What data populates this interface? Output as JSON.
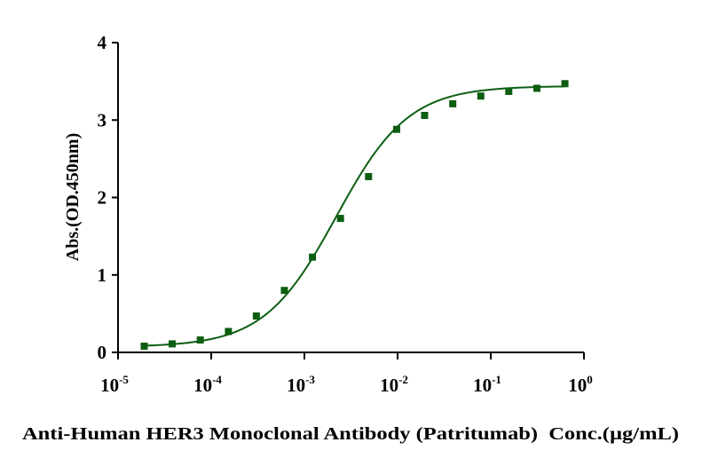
{
  "chart_data": {
    "type": "scatter",
    "title": "",
    "xlabel": "Anti-Human HER3 Monoclonal Antibody (Patritumab)  Conc.(µg/mL)",
    "ylabel": "Abs.(OD.450nm)",
    "xscale": "log",
    "xlim": [
      1e-05,
      1
    ],
    "ylim": [
      0,
      4
    ],
    "grid": false,
    "x_ticks": [
      {
        "base": "10",
        "exp": "-5",
        "value": 1e-05
      },
      {
        "base": "10",
        "exp": "-4",
        "value": 0.0001
      },
      {
        "base": "10",
        "exp": "-3",
        "value": 0.001
      },
      {
        "base": "10",
        "exp": "-2",
        "value": 0.01
      },
      {
        "base": "10",
        "exp": "-1",
        "value": 0.1
      },
      {
        "base": "10",
        "exp": "0",
        "value": 1
      }
    ],
    "y_ticks": [
      "0",
      "1",
      "2",
      "3",
      "4"
    ],
    "series": [
      {
        "name": "Patritumab",
        "color": "#0d5e12",
        "marker": "square",
        "x": [
          1.91e-05,
          3.81e-05,
          7.63e-05,
          0.000153,
          0.000305,
          0.00061,
          0.00122,
          0.00244,
          0.00488,
          0.00977,
          0.0195,
          0.0391,
          0.0781,
          0.156,
          0.3125,
          0.625
        ],
        "y": [
          0.08,
          0.11,
          0.16,
          0.27,
          0.47,
          0.8,
          1.23,
          1.73,
          2.27,
          2.88,
          3.06,
          3.21,
          3.31,
          3.37,
          3.41,
          3.47
        ],
        "fit": {
          "model": "4PL",
          "bottom": 0.07,
          "top": 3.44,
          "ec50": 0.0022,
          "hill": 1.12
        }
      }
    ]
  }
}
